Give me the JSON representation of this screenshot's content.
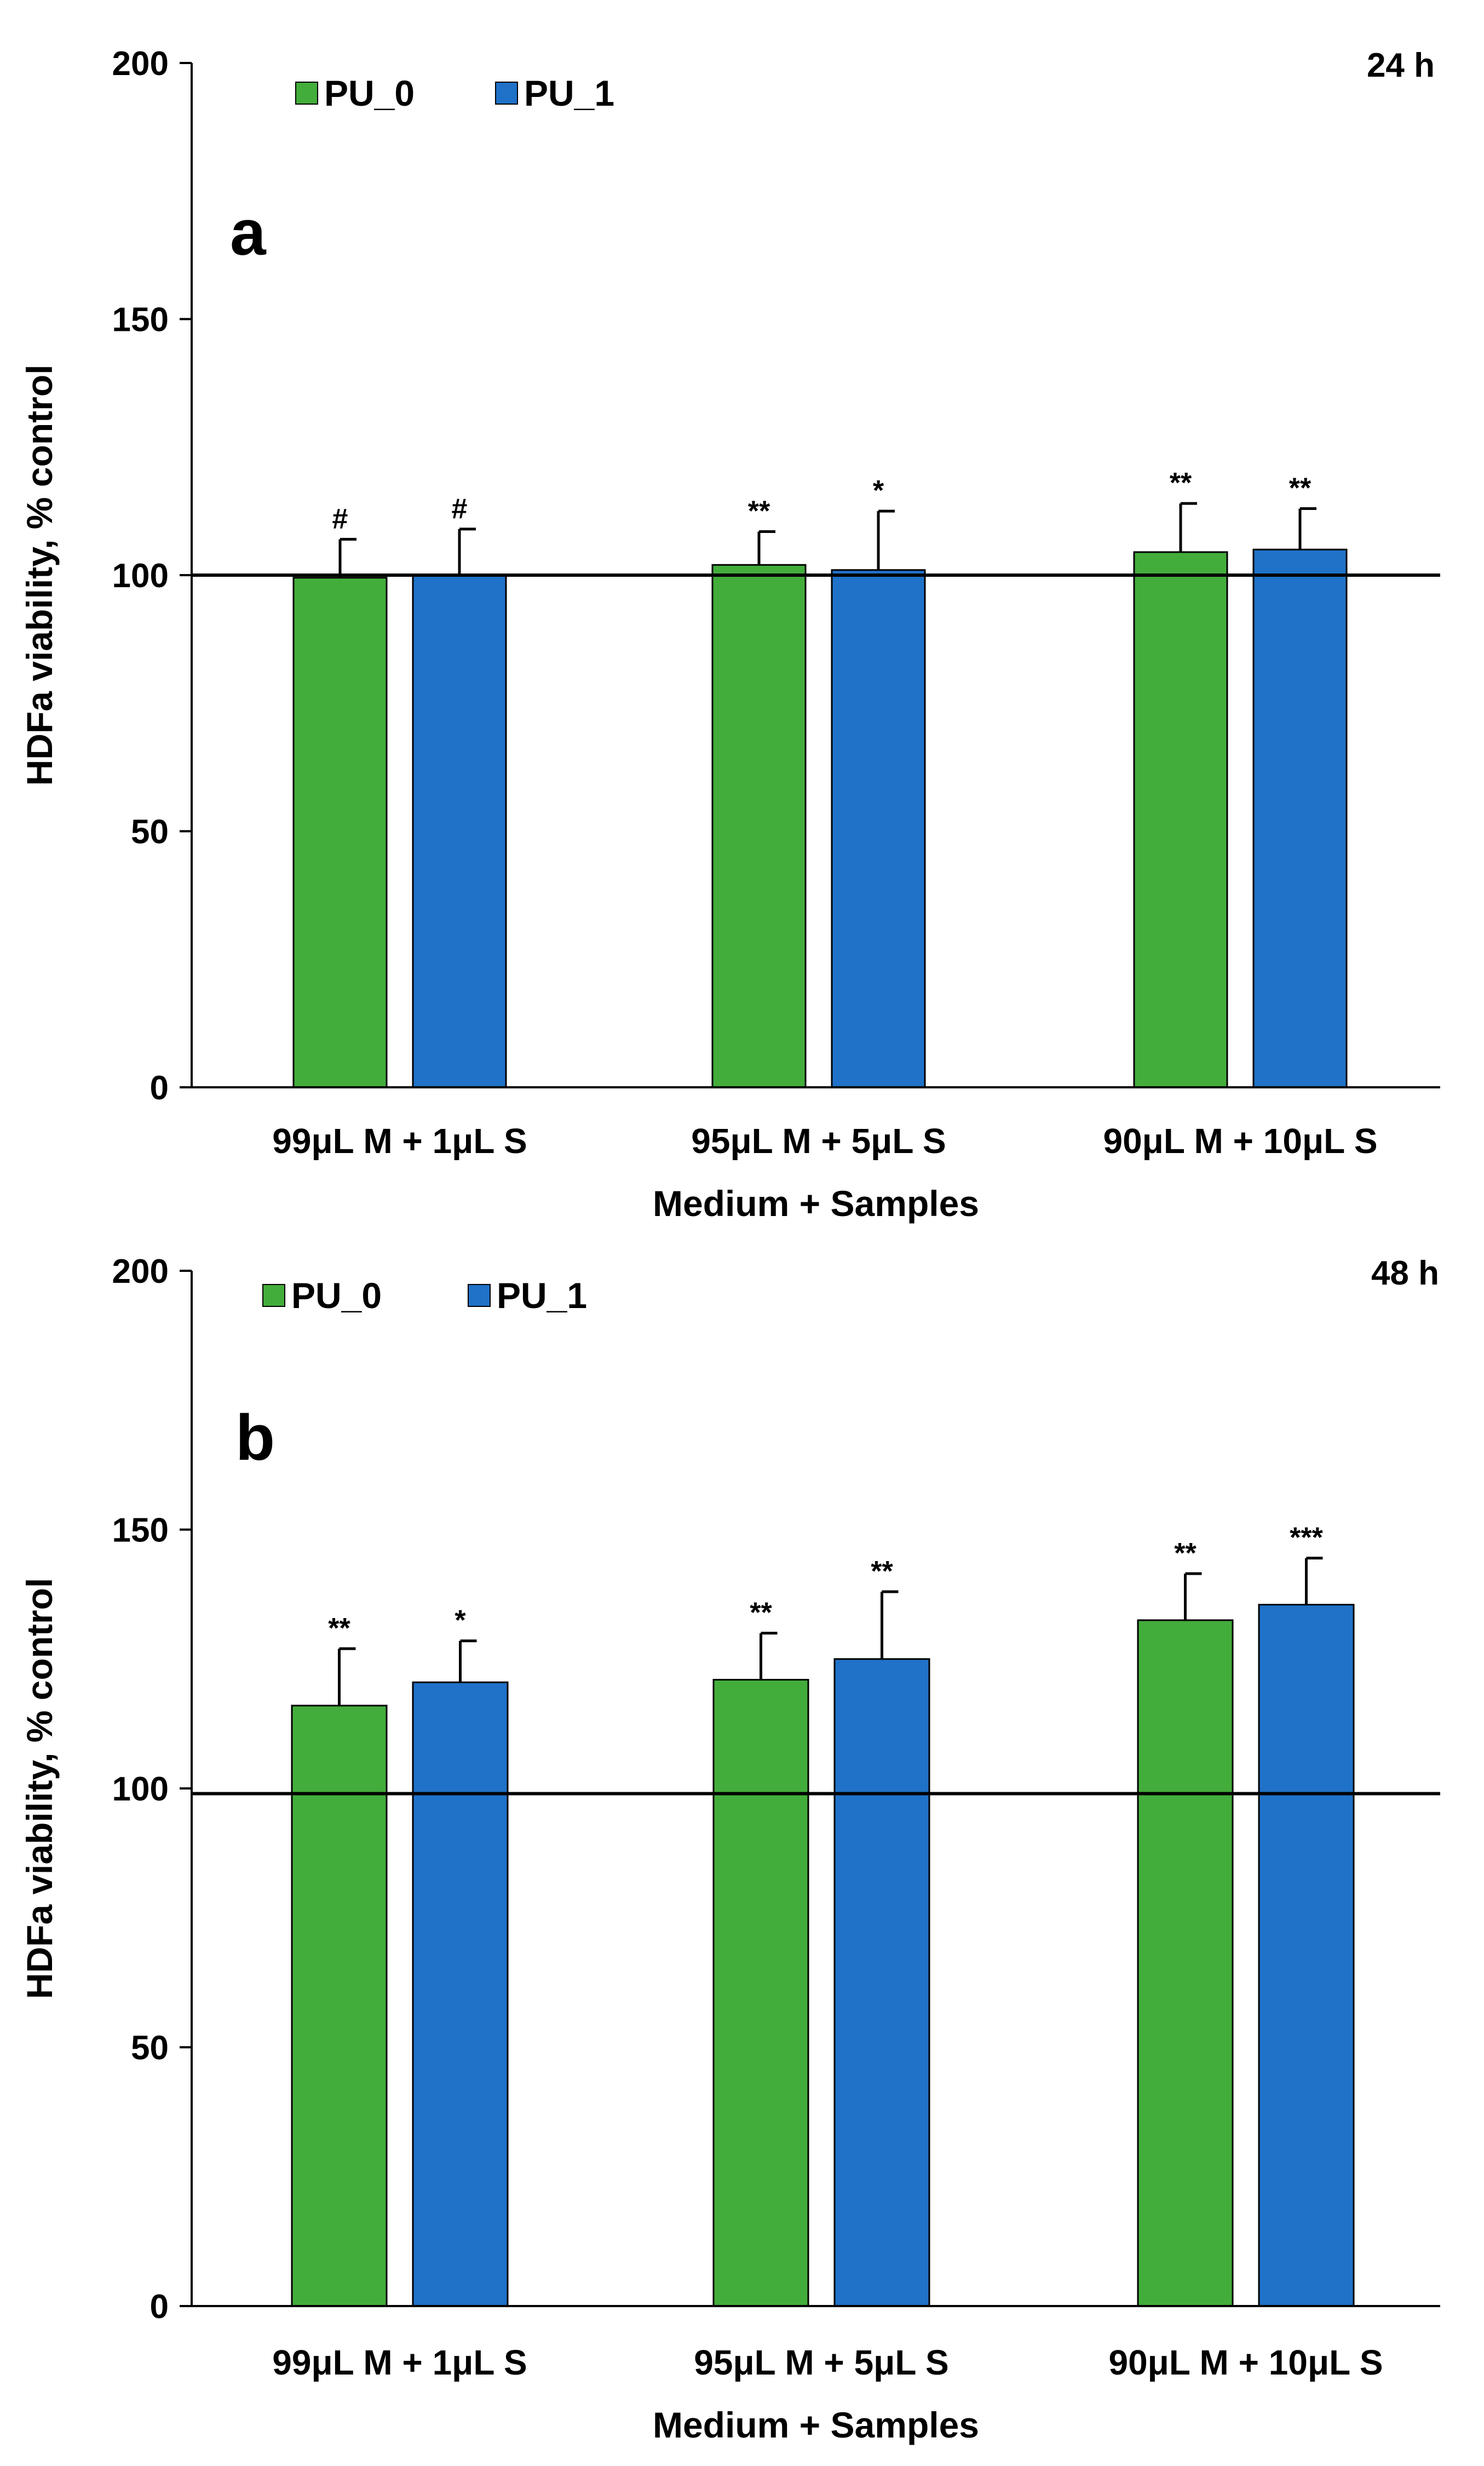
{
  "chart_data": [
    {
      "type": "bar",
      "panel_label": "a",
      "time_label": "24 h",
      "categories": [
        "99μL M + 1μL S",
        "95μL M + 5μL S",
        "90μL M + 10μL S"
      ],
      "series": [
        {
          "name": "PU_0",
          "color": "#43ad3b",
          "values": [
            99.5,
            102,
            104.5
          ],
          "errors": [
            7.5,
            6.5,
            9.5
          ],
          "annotations": [
            "#",
            "**",
            "**"
          ]
        },
        {
          "name": "PU_1",
          "color": "#1f72c8",
          "values": [
            100,
            101,
            105
          ],
          "errors": [
            9,
            11.5,
            8
          ],
          "annotations": [
            "#",
            "*",
            "**"
          ]
        }
      ],
      "reference_line": 100,
      "xlabel": "Medium + Samples",
      "ylabel": "HDFa viability, % control",
      "ylim": [
        0,
        200
      ],
      "yticks": [
        0,
        50,
        100,
        150,
        200
      ],
      "grid": false,
      "legend_position": "top-left"
    },
    {
      "type": "bar",
      "panel_label": "b",
      "time_label": "48 h",
      "categories": [
        "99μL M + 1μL S",
        "95μL M + 5μL S",
        "90μL M + 10μL S"
      ],
      "series": [
        {
          "name": "PU_0",
          "color": "#43ad3b",
          "values": [
            116,
            121,
            132.5
          ],
          "errors": [
            11,
            9,
            9
          ],
          "annotations": [
            "**",
            "**",
            "**"
          ]
        },
        {
          "name": "PU_1",
          "color": "#1f72c8",
          "values": [
            120.5,
            125,
            135.5
          ],
          "errors": [
            8,
            13,
            9
          ],
          "annotations": [
            "*",
            "**",
            "***"
          ]
        }
      ],
      "reference_line": 99,
      "xlabel": "Medium + Samples",
      "ylabel": "HDFa viability, % control",
      "ylim": [
        0,
        200
      ],
      "yticks": [
        0,
        50,
        100,
        150,
        200
      ],
      "grid": false,
      "legend_position": "top-left"
    }
  ]
}
